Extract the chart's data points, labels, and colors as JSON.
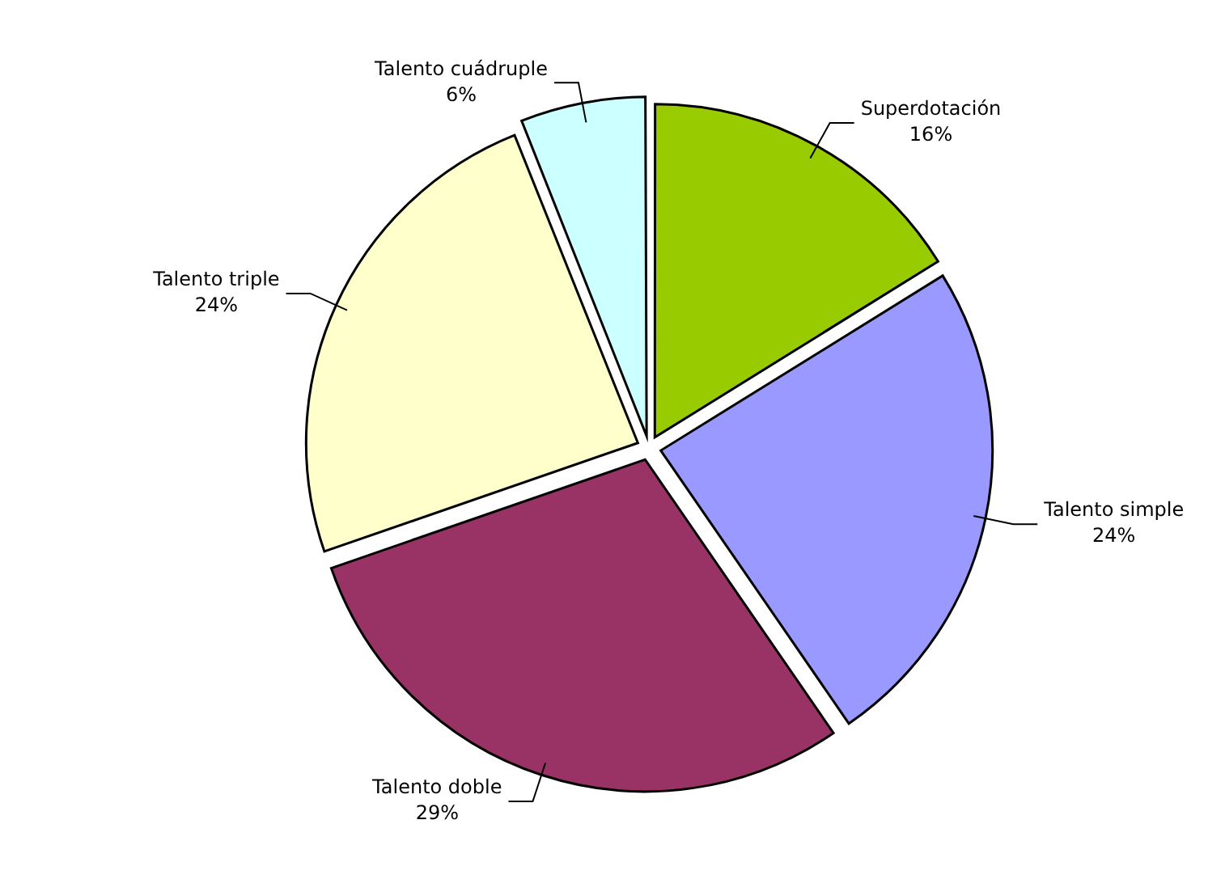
{
  "chart_data": {
    "type": "pie",
    "categories": [
      "Superdotación",
      "Talento simple",
      "Talento doble",
      "Talento triple",
      "Talento cuádruple"
    ],
    "values": [
      16,
      24,
      29,
      24,
      6
    ],
    "value_labels": [
      "16%",
      "24%",
      "29%",
      "24%",
      "6%"
    ],
    "colors": [
      "#99cc00",
      "#9999ff",
      "#993366",
      "#ffffcc",
      "#ccffff"
    ],
    "legend": false
  }
}
